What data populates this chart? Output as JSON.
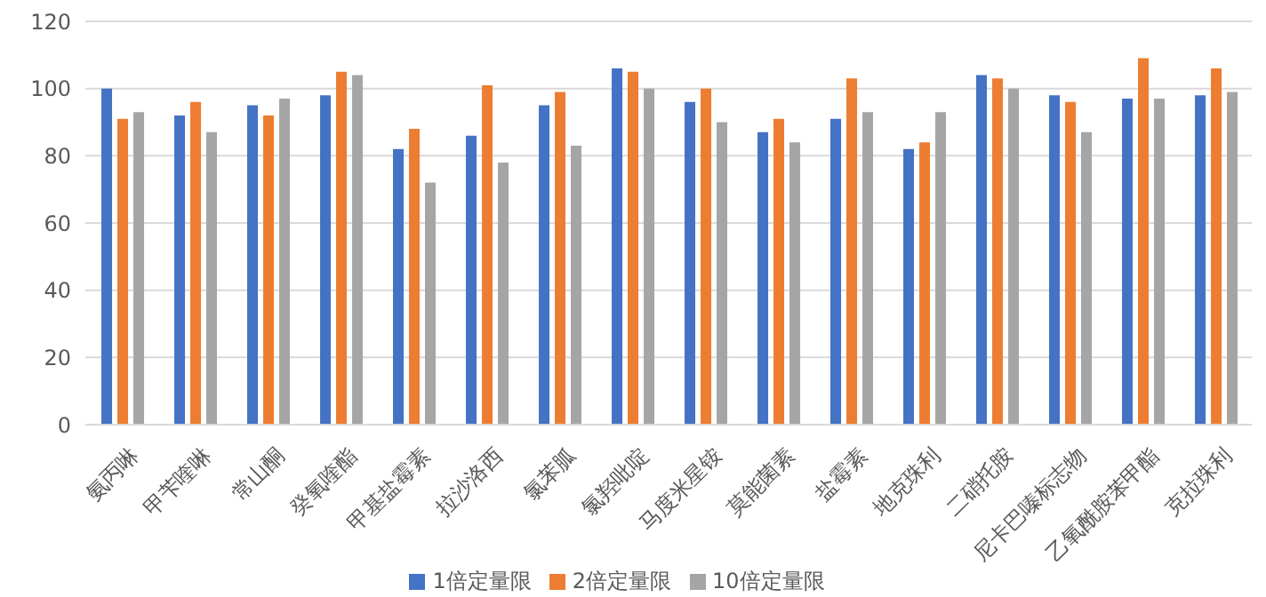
{
  "chart_data": {
    "type": "bar",
    "categories": [
      "氨丙啉",
      "甲苄喹啉",
      "常山酮",
      "癸氧喹酯",
      "甲基盐霉素",
      "拉沙洛西",
      "氯苯胍",
      "氯羟吡啶",
      "马度米星铵",
      "莫能菌素",
      "盐霉素",
      "地克珠利",
      "二硝托胺",
      "尼卡巴嗪标志物",
      "乙氧酰胺苯甲酯",
      "克拉珠利"
    ],
    "series": [
      {
        "name": "1倍定量限",
        "color": "#4472c4",
        "values": [
          100,
          92,
          95,
          98,
          82,
          86,
          95,
          106,
          96,
          87,
          91,
          82,
          104,
          98,
          97,
          98
        ]
      },
      {
        "name": "2倍定量限",
        "color": "#ed7d31",
        "values": [
          91,
          96,
          92,
          105,
          88,
          101,
          99,
          105,
          100,
          91,
          103,
          84,
          103,
          96,
          109,
          106
        ]
      },
      {
        "name": "10倍定量限",
        "color": "#a5a5a5",
        "values": [
          93,
          87,
          97,
          104,
          72,
          78,
          83,
          100,
          90,
          84,
          93,
          93,
          100,
          87,
          97,
          99
        ]
      }
    ],
    "ylim": [
      0,
      120
    ],
    "yticks": [
      0,
      20,
      40,
      60,
      80,
      100,
      120
    ],
    "grid": "y",
    "legend": "bottom"
  }
}
